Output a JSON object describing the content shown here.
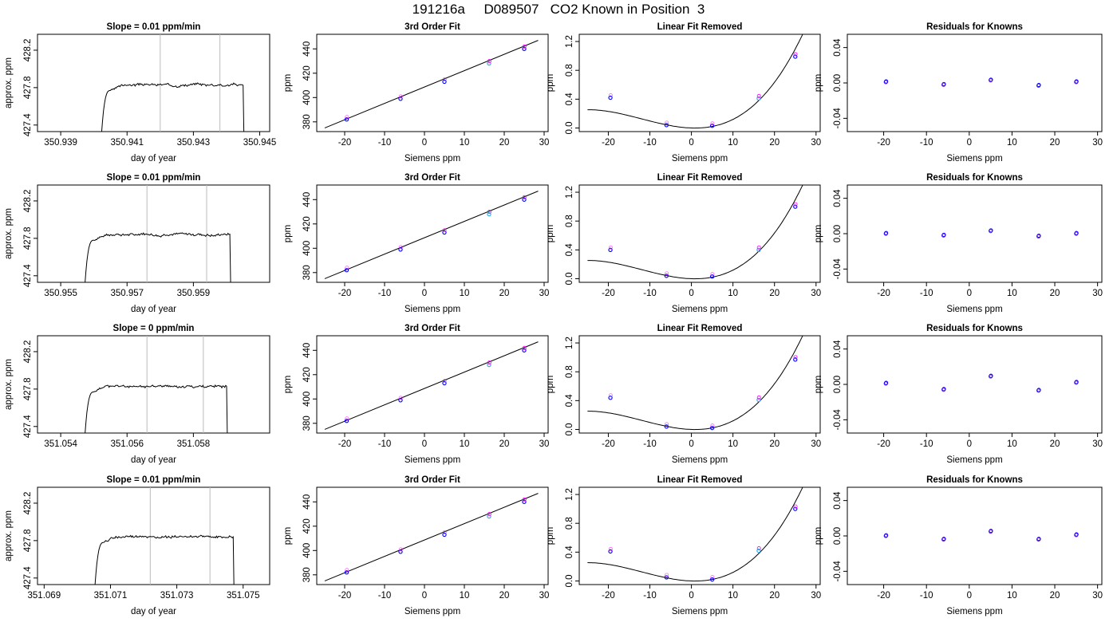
{
  "page_title": "191216a     D089507   CO2 Known in Position  3",
  "colors": {
    "line": "#000000",
    "vline": "#bbbbbb",
    "pt_blue": "#0000ff",
    "pt_magenta": "#ff00ff",
    "pt_cyan": "#22aaee",
    "pt_purple": "#7722ee"
  },
  "chart_data": [
    {
      "id": "r1-time",
      "type": "line",
      "title": "Slope =  0.01  ppm/min",
      "xlabel": "day of year",
      "ylabel": "approx. ppm",
      "xlim": [
        350.9383,
        350.9453
      ],
      "ylim": [
        427.33,
        428.37
      ],
      "xticks": [
        350.939,
        350.941,
        350.943,
        350.945
      ],
      "xticklabels": [
        "350.939",
        "350.941",
        "350.943",
        "350.945"
      ],
      "yticks": [
        427.4,
        427.8,
        428.2
      ],
      "yticklabels": [
        "427.4",
        "427.8",
        "428.2"
      ],
      "vlines": [
        350.942,
        350.9438
      ],
      "trace": {
        "start": 350.9402,
        "rise_end": 350.9405,
        "plateau": 427.83,
        "end": 350.9445
      },
      "seed": 3
    },
    {
      "id": "r1-fit",
      "type": "scatter",
      "title": "3rd Order Fit",
      "xlabel": "Siemens ppm",
      "ylabel": "ppm",
      "xlim": [
        -27,
        31
      ],
      "ylim": [
        372,
        452
      ],
      "xticks": [
        -20,
        -10,
        0,
        10,
        20,
        30
      ],
      "xticklabels": [
        "-20",
        "-10",
        "0",
        "10",
        "20",
        "30"
      ],
      "yticks": [
        380,
        400,
        420,
        440
      ],
      "yticklabels": [
        "380",
        "400",
        "420",
        "440"
      ],
      "line": [
        [
          -25,
          375
        ],
        [
          28.5,
          447
        ]
      ],
      "points": [
        {
          "x": -19.5,
          "y": 382
        },
        {
          "x": -6,
          "y": 399
        },
        {
          "x": 5,
          "y": 413
        },
        {
          "x": 16.2,
          "y": 428
        },
        {
          "x": 25,
          "y": 440
        }
      ]
    },
    {
      "id": "r1-lin",
      "type": "scatter",
      "title": "Linear Fit Removed",
      "xlabel": "Siemens ppm",
      "ylabel": "ppm",
      "xlim": [
        -27,
        31
      ],
      "ylim": [
        -0.05,
        1.3
      ],
      "xticks": [
        -20,
        -10,
        0,
        10,
        20,
        30
      ],
      "xticklabels": [
        "-20",
        "-10",
        "0",
        "10",
        "20",
        "30"
      ],
      "yticks": [
        0,
        0.4,
        0.8,
        1.2
      ],
      "yticklabels": [
        "0.0",
        "0.4",
        "0.8",
        "1.2"
      ],
      "curve": {
        "x0": -25,
        "x1": 29,
        "a": 0.00108,
        "b": -0.0019,
        "c": 3e-05
      },
      "points": [
        {
          "x": -19.5,
          "y": 0.42
        },
        {
          "x": -6,
          "y": 0.04
        },
        {
          "x": 5,
          "y": 0.03
        },
        {
          "x": 16.2,
          "y": 0.41
        },
        {
          "x": 25,
          "y": 0.99
        }
      ]
    },
    {
      "id": "r1-res",
      "type": "scatter",
      "title": "Residuals for Knowns",
      "xlabel": "Siemens ppm",
      "ylabel": "ppm",
      "xlim": [
        -28.5,
        31
      ],
      "ylim": [
        -0.055,
        0.055
      ],
      "xticks": [
        -20,
        -10,
        0,
        10,
        20,
        30
      ],
      "xticklabels": [
        "-20",
        "-10",
        "0",
        "10",
        "20",
        "30"
      ],
      "yticks": [
        -0.04,
        0,
        0.04
      ],
      "yticklabels": [
        "-0.04",
        "0.00",
        "0.04"
      ],
      "points": [
        {
          "x": -19.5,
          "y": 0.001
        },
        {
          "x": -6,
          "y": -0.002
        },
        {
          "x": 5,
          "y": 0.003
        },
        {
          "x": 16.2,
          "y": -0.003
        },
        {
          "x": 25,
          "y": 0.001
        }
      ]
    },
    {
      "id": "r2-time",
      "type": "line",
      "title": "Slope =  0.01  ppm/min",
      "xlabel": "day of year",
      "ylabel": "approx. ppm",
      "xlim": [
        350.9543,
        350.9613
      ],
      "ylim": [
        427.33,
        428.37
      ],
      "xticks": [
        350.955,
        350.957,
        350.959
      ],
      "xticklabels": [
        "350.955",
        "350.957",
        "350.959"
      ],
      "yticks": [
        427.4,
        427.8,
        428.2
      ],
      "yticklabels": [
        "427.4",
        "427.8",
        "428.2"
      ],
      "vlines": [
        350.9576,
        350.9594
      ],
      "trace": {
        "start": 350.9557,
        "rise_end": 350.956,
        "plateau": 427.84,
        "end": 350.9601
      },
      "seed": 7
    },
    {
      "id": "r2-fit",
      "type": "scatter",
      "title": "3rd Order Fit",
      "xlabel": "Siemens ppm",
      "ylabel": "ppm",
      "xlim": [
        -27,
        31
      ],
      "ylim": [
        372,
        452
      ],
      "xticks": [
        -20,
        -10,
        0,
        10,
        20,
        30
      ],
      "xticklabels": [
        "-20",
        "-10",
        "0",
        "10",
        "20",
        "30"
      ],
      "yticks": [
        380,
        400,
        420,
        440
      ],
      "yticklabels": [
        "380",
        "400",
        "420",
        "440"
      ],
      "line": [
        [
          -25,
          375
        ],
        [
          28.5,
          447
        ]
      ],
      "points": [
        {
          "x": -19.5,
          "y": 382
        },
        {
          "x": -6,
          "y": 399
        },
        {
          "x": 5,
          "y": 413
        },
        {
          "x": 16.2,
          "y": 428
        },
        {
          "x": 25,
          "y": 440
        }
      ]
    },
    {
      "id": "r2-lin",
      "type": "scatter",
      "title": "Linear Fit Removed",
      "xlabel": "Siemens ppm",
      "ylabel": "ppm",
      "xlim": [
        -27,
        31
      ],
      "ylim": [
        -0.05,
        1.3
      ],
      "xticks": [
        -20,
        -10,
        0,
        10,
        20,
        30
      ],
      "xticklabels": [
        "-20",
        "-10",
        "0",
        "10",
        "20",
        "30"
      ],
      "yticks": [
        0,
        0.4,
        0.8,
        1.2
      ],
      "yticklabels": [
        "0.0",
        "0.4",
        "0.8",
        "1.2"
      ],
      "curve": {
        "x0": -25,
        "x1": 29,
        "a": 0.00108,
        "b": -0.0019,
        "c": 3e-05
      },
      "points": [
        {
          "x": -19.5,
          "y": 0.4
        },
        {
          "x": -6,
          "y": 0.04
        },
        {
          "x": 5,
          "y": 0.03
        },
        {
          "x": 16.2,
          "y": 0.4
        },
        {
          "x": 25,
          "y": 1.0
        }
      ]
    },
    {
      "id": "r2-res",
      "type": "scatter",
      "title": "Residuals for Knowns",
      "xlabel": "Siemens ppm",
      "ylabel": "ppm",
      "xlim": [
        -28.5,
        31
      ],
      "ylim": [
        -0.055,
        0.055
      ],
      "xticks": [
        -20,
        -10,
        0,
        10,
        20,
        30
      ],
      "xticklabels": [
        "-20",
        "-10",
        "0",
        "10",
        "20",
        "30"
      ],
      "yticks": [
        -0.04,
        0,
        0.04
      ],
      "yticklabels": [
        "-0.04",
        "0.00",
        "0.04"
      ],
      "points": [
        {
          "x": -19.5,
          "y": 0.0
        },
        {
          "x": -6,
          "y": -0.002
        },
        {
          "x": 5,
          "y": 0.003
        },
        {
          "x": 16.2,
          "y": -0.003
        },
        {
          "x": 25,
          "y": 0.0
        }
      ]
    },
    {
      "id": "r3-time",
      "type": "line",
      "title": "Slope =  0  ppm/min",
      "xlabel": "day of year",
      "ylabel": "approx. ppm",
      "xlim": [
        351.0533,
        351.0603
      ],
      "ylim": [
        427.33,
        428.37
      ],
      "xticks": [
        351.054,
        351.056,
        351.058
      ],
      "xticklabels": [
        "351.054",
        "351.056",
        "351.058"
      ],
      "yticks": [
        427.4,
        427.8,
        428.2
      ],
      "yticklabels": [
        "427.4",
        "427.8",
        "428.2"
      ],
      "vlines": [
        351.0566,
        351.0583
      ],
      "trace": {
        "start": 351.0547,
        "rise_end": 351.055,
        "plateau": 427.83,
        "end": 351.059
      },
      "seed": 11
    },
    {
      "id": "r3-fit",
      "type": "scatter",
      "title": "3rd Order Fit",
      "xlabel": "Siemens ppm",
      "ylabel": "ppm",
      "xlim": [
        -27,
        31
      ],
      "ylim": [
        372,
        452
      ],
      "xticks": [
        -20,
        -10,
        0,
        10,
        20,
        30
      ],
      "xticklabels": [
        "-20",
        "-10",
        "0",
        "10",
        "20",
        "30"
      ],
      "yticks": [
        380,
        400,
        420,
        440
      ],
      "yticklabels": [
        "380",
        "400",
        "420",
        "440"
      ],
      "line": [
        [
          -25,
          375
        ],
        [
          28.5,
          447
        ]
      ],
      "points": [
        {
          "x": -19.5,
          "y": 382
        },
        {
          "x": -6,
          "y": 399
        },
        {
          "x": 5,
          "y": 413
        },
        {
          "x": 16.2,
          "y": 428
        },
        {
          "x": 25,
          "y": 440
        }
      ]
    },
    {
      "id": "r3-lin",
      "type": "scatter",
      "title": "Linear Fit Removed",
      "xlabel": "Siemens ppm",
      "ylabel": "ppm",
      "xlim": [
        -27,
        31
      ],
      "ylim": [
        -0.05,
        1.3
      ],
      "xticks": [
        -20,
        -10,
        0,
        10,
        20,
        30
      ],
      "xticklabels": [
        "-20",
        "-10",
        "0",
        "10",
        "20",
        "30"
      ],
      "yticks": [
        0,
        0.4,
        0.8,
        1.2
      ],
      "yticklabels": [
        "0.0",
        "0.4",
        "0.8",
        "1.2"
      ],
      "curve": {
        "x0": -25,
        "x1": 29,
        "a": 0.00108,
        "b": -0.0019,
        "c": 3e-05
      },
      "points": [
        {
          "x": -19.5,
          "y": 0.44
        },
        {
          "x": -6,
          "y": 0.04
        },
        {
          "x": 5,
          "y": 0.02
        },
        {
          "x": 16.2,
          "y": 0.41
        },
        {
          "x": 25,
          "y": 0.97
        }
      ]
    },
    {
      "id": "r3-res",
      "type": "scatter",
      "title": "Residuals for Knowns",
      "xlabel": "Siemens ppm",
      "ylabel": "ppm",
      "xlim": [
        -28.5,
        31
      ],
      "ylim": [
        -0.055,
        0.055
      ],
      "xticks": [
        -20,
        -10,
        0,
        10,
        20,
        30
      ],
      "xticklabels": [
        "-20",
        "-10",
        "0",
        "10",
        "20",
        "30"
      ],
      "yticks": [
        -0.04,
        0,
        0.04
      ],
      "yticklabels": [
        "-0.04",
        "0.00",
        "0.04"
      ],
      "points": [
        {
          "x": -19.5,
          "y": 0.001
        },
        {
          "x": -6,
          "y": -0.006
        },
        {
          "x": 5,
          "y": 0.009
        },
        {
          "x": 16.2,
          "y": -0.007
        },
        {
          "x": 25,
          "y": 0.002
        }
      ]
    },
    {
      "id": "r4-time",
      "type": "line",
      "title": "Slope =  0.01  ppm/min",
      "xlabel": "day of year",
      "ylabel": "approx. ppm",
      "xlim": [
        351.0688,
        351.0758
      ],
      "ylim": [
        427.33,
        428.37
      ],
      "xticks": [
        351.069,
        351.071,
        351.073,
        351.075
      ],
      "xticklabels": [
        "351.069",
        "351.071",
        "351.073",
        "351.075"
      ],
      "yticks": [
        427.4,
        427.8,
        428.2
      ],
      "yticklabels": [
        "427.4",
        "427.8",
        "428.2"
      ],
      "vlines": [
        351.0722,
        351.074
      ],
      "trace": {
        "start": 351.0705,
        "rise_end": 351.0708,
        "plateau": 427.84,
        "end": 351.0747
      },
      "seed": 19
    },
    {
      "id": "r4-fit",
      "type": "scatter",
      "title": "3rd Order Fit",
      "xlabel": "Siemens ppm",
      "ylabel": "ppm",
      "xlim": [
        -27,
        31
      ],
      "ylim": [
        372,
        452
      ],
      "xticks": [
        -20,
        -10,
        0,
        10,
        20,
        30
      ],
      "xticklabels": [
        "-20",
        "-10",
        "0",
        "10",
        "20",
        "30"
      ],
      "yticks": [
        380,
        400,
        420,
        440
      ],
      "yticklabels": [
        "380",
        "400",
        "420",
        "440"
      ],
      "line": [
        [
          -25,
          375
        ],
        [
          28.5,
          447
        ]
      ],
      "points": [
        {
          "x": -19.5,
          "y": 382
        },
        {
          "x": -6,
          "y": 399
        },
        {
          "x": 5,
          "y": 413
        },
        {
          "x": 16.2,
          "y": 428
        },
        {
          "x": 25,
          "y": 440
        }
      ]
    },
    {
      "id": "r4-lin",
      "type": "scatter",
      "title": "Linear Fit Removed",
      "xlabel": "Siemens ppm",
      "ylabel": "ppm",
      "xlim": [
        -27,
        31
      ],
      "ylim": [
        -0.05,
        1.3
      ],
      "xticks": [
        -20,
        -10,
        0,
        10,
        20,
        30
      ],
      "xticklabels": [
        "-20",
        "-10",
        "0",
        "10",
        "20",
        "30"
      ],
      "yticks": [
        0,
        0.4,
        0.8,
        1.2
      ],
      "yticklabels": [
        "0.0",
        "0.4",
        "0.8",
        "1.2"
      ],
      "curve": {
        "x0": -25,
        "x1": 29,
        "a": 0.00108,
        "b": -0.0019,
        "c": 3e-05
      },
      "points": [
        {
          "x": -19.5,
          "y": 0.41
        },
        {
          "x": -6,
          "y": 0.05
        },
        {
          "x": 5,
          "y": 0.02
        },
        {
          "x": 16.2,
          "y": 0.42
        },
        {
          "x": 25,
          "y": 1.0
        }
      ]
    },
    {
      "id": "r4-res",
      "type": "scatter",
      "title": "Residuals for Knowns",
      "xlabel": "Siemens ppm",
      "ylabel": "ppm",
      "xlim": [
        -28.5,
        31
      ],
      "ylim": [
        -0.055,
        0.055
      ],
      "xticks": [
        -20,
        -10,
        0,
        10,
        20,
        30
      ],
      "xticklabels": [
        "-20",
        "-10",
        "0",
        "10",
        "20",
        "30"
      ],
      "yticks": [
        -0.04,
        0,
        0.04
      ],
      "yticklabels": [
        "-0.04",
        "0.00",
        "0.04"
      ],
      "points": [
        {
          "x": -19.5,
          "y": 0.0
        },
        {
          "x": -6,
          "y": -0.004
        },
        {
          "x": 5,
          "y": 0.005
        },
        {
          "x": 16.2,
          "y": -0.004
        },
        {
          "x": 25,
          "y": 0.001
        }
      ]
    }
  ]
}
